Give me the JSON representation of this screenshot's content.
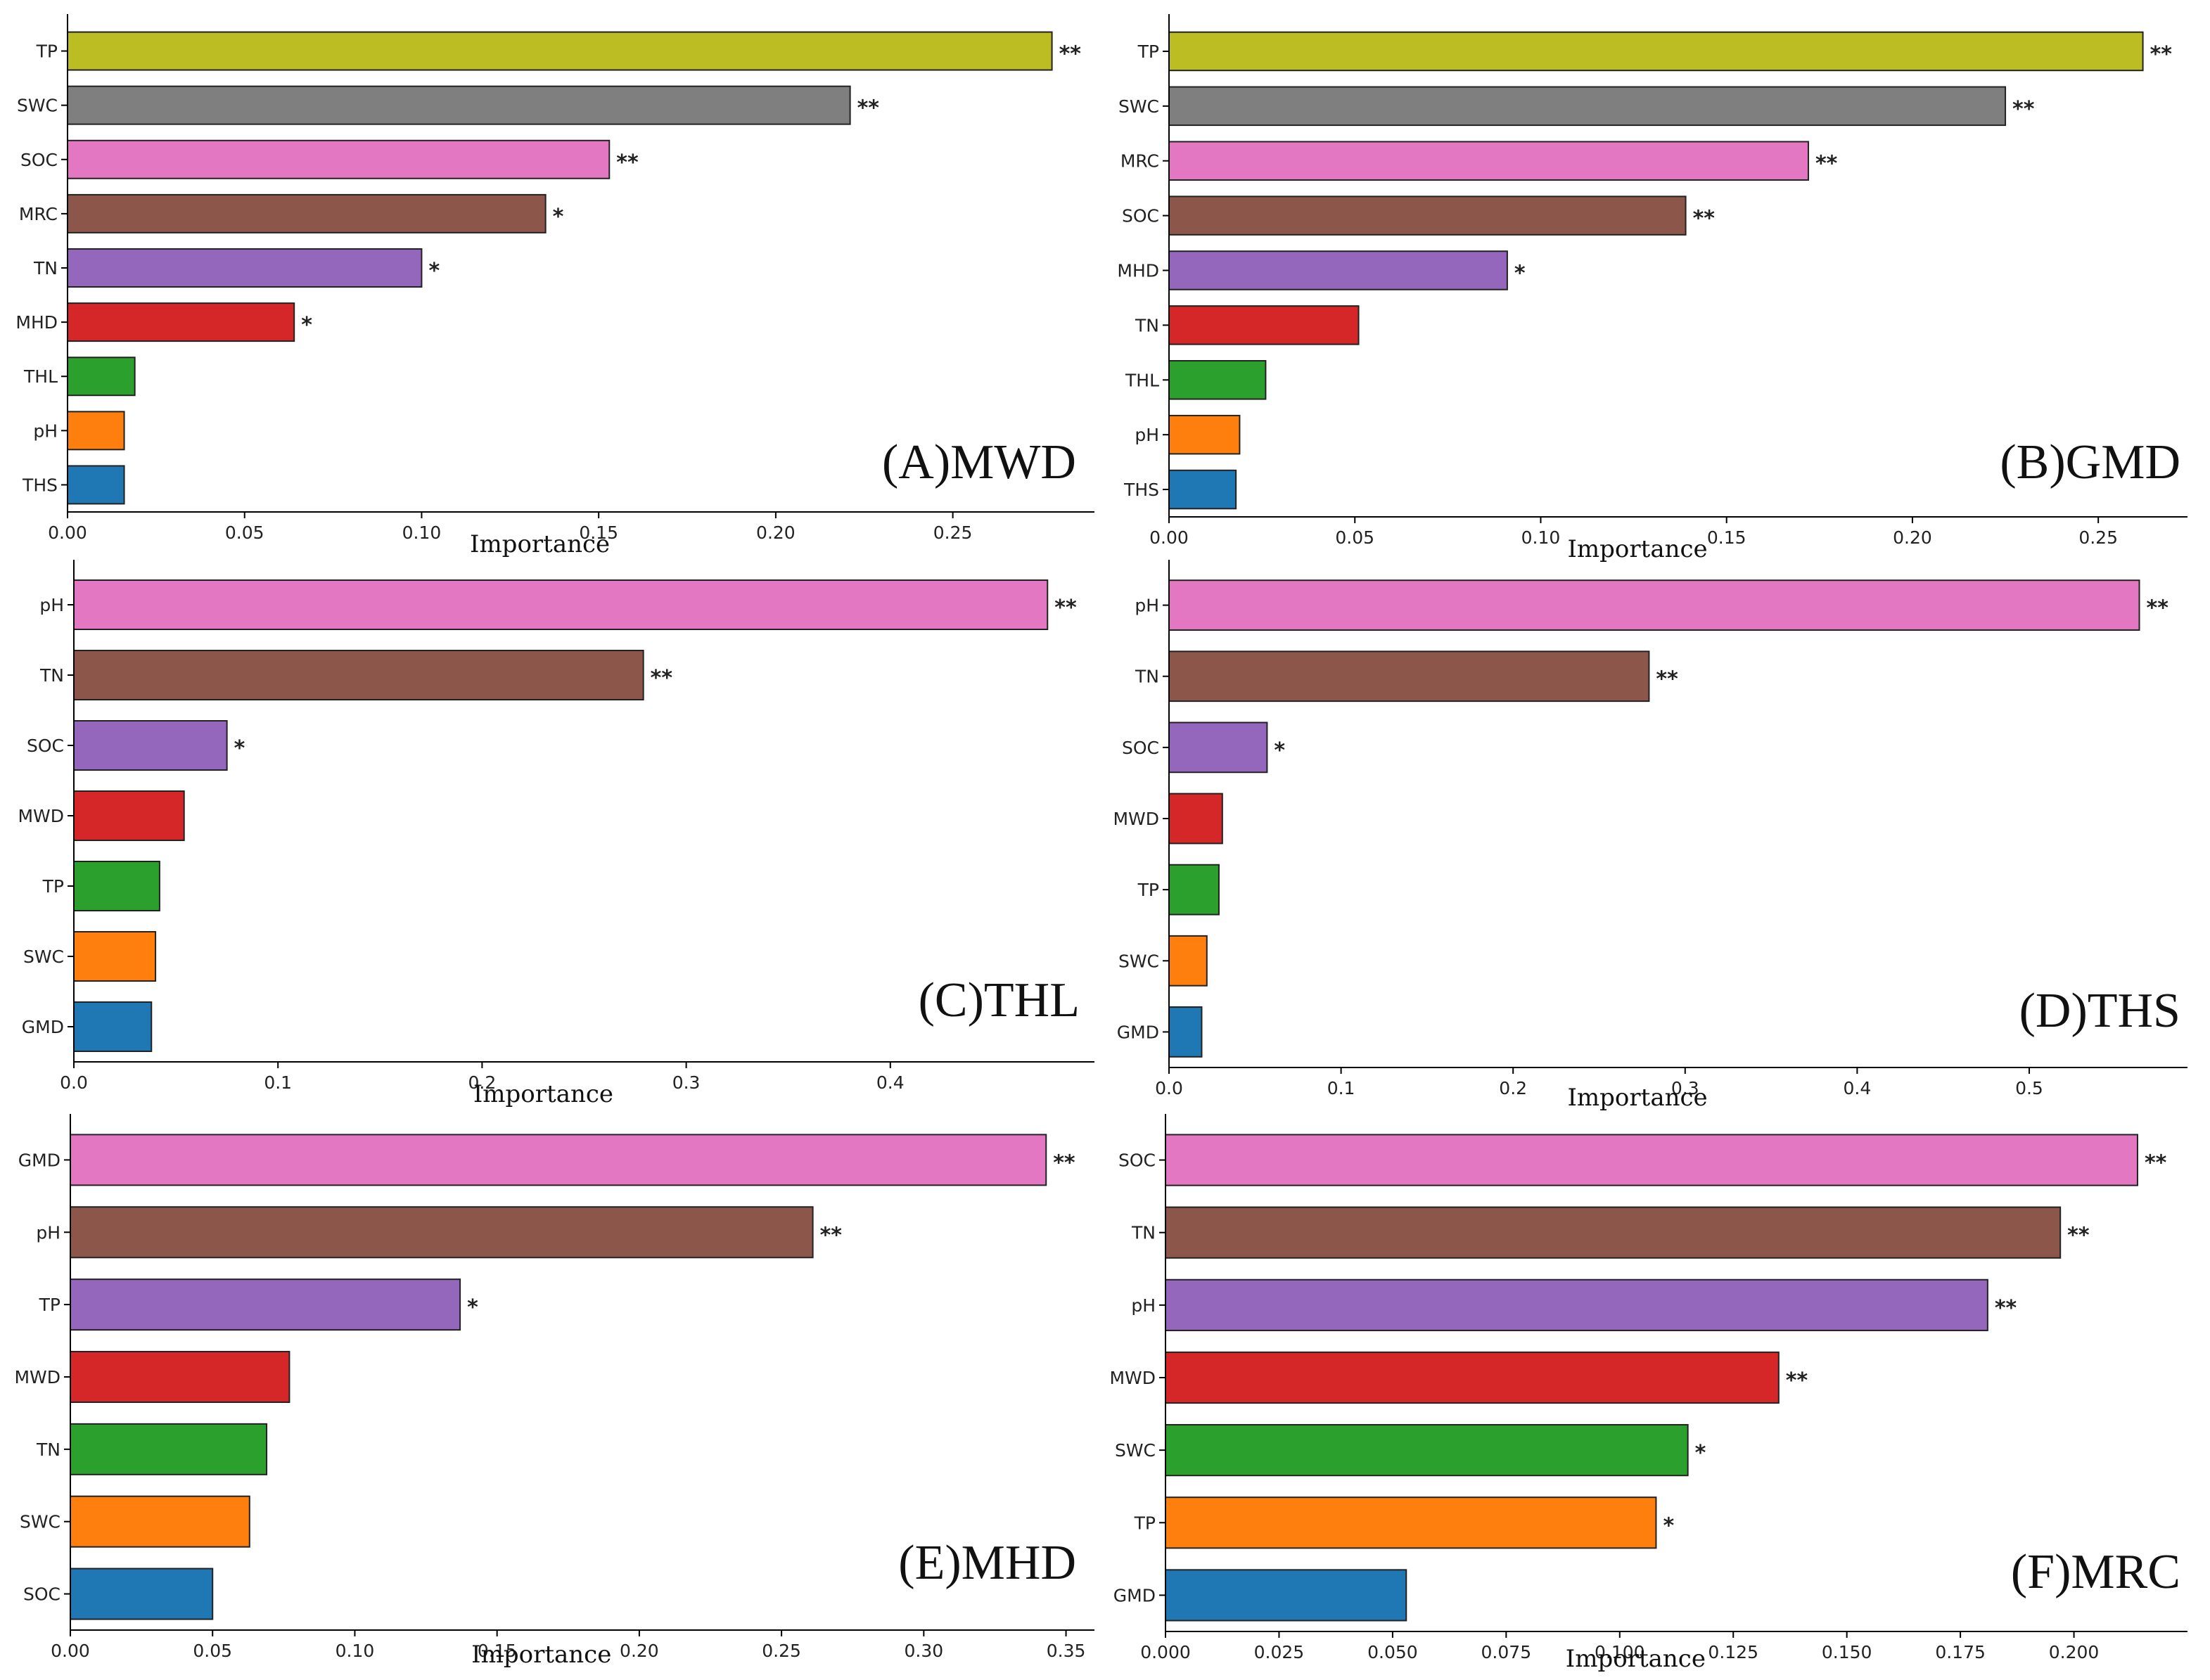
{
  "chart_data": [
    {
      "type": "bar",
      "orientation": "horizontal",
      "title": "(A)MWD",
      "xlabel": "Importance",
      "xlim": [
        0,
        0.29
      ],
      "xticks": [
        "0.00",
        "0.05",
        "0.10",
        "0.15",
        "0.20",
        "0.25"
      ],
      "categories": [
        "TP",
        "SWC",
        "SOC",
        "MRC",
        "TN",
        "MHD",
        "THL",
        "pH",
        "THS"
      ],
      "values": [
        0.278,
        0.221,
        0.153,
        0.135,
        0.1,
        0.064,
        0.019,
        0.016,
        0.016
      ],
      "colors": [
        "#bcbd22",
        "#7f7f7f",
        "#e377c2",
        "#8c564b",
        "#9467bd",
        "#d62728",
        "#2ca02c",
        "#ff7f0e",
        "#1f77b4"
      ],
      "significance": [
        "**",
        "**",
        "**",
        "*",
        "*",
        "*",
        "",
        "",
        ""
      ]
    },
    {
      "type": "bar",
      "orientation": "horizontal",
      "title": "(B)GMD",
      "xlabel": "Importance",
      "xlim": [
        0,
        0.274
      ],
      "xticks": [
        "0.00",
        "0.05",
        "0.10",
        "0.15",
        "0.20",
        "0.25"
      ],
      "categories": [
        "TP",
        "SWC",
        "MRC",
        "SOC",
        "MHD",
        "TN",
        "THL",
        "pH",
        "THS"
      ],
      "values": [
        0.262,
        0.225,
        0.172,
        0.139,
        0.091,
        0.051,
        0.026,
        0.019,
        0.018
      ],
      "colors": [
        "#bcbd22",
        "#7f7f7f",
        "#e377c2",
        "#8c564b",
        "#9467bd",
        "#d62728",
        "#2ca02c",
        "#ff7f0e",
        "#1f77b4"
      ],
      "significance": [
        "**",
        "**",
        "**",
        "**",
        "*",
        "",
        "",
        "",
        ""
      ]
    },
    {
      "type": "bar",
      "orientation": "horizontal",
      "title": "(C)THL",
      "xlabel": "Importance",
      "xlim": [
        0,
        0.5
      ],
      "xticks": [
        "0.0",
        "0.1",
        "0.2",
        "0.3",
        "0.4"
      ],
      "categories": [
        "pH",
        "TN",
        "SOC",
        "MWD",
        "TP",
        "SWC",
        "GMD"
      ],
      "values": [
        0.477,
        0.279,
        0.075,
        0.054,
        0.042,
        0.04,
        0.038
      ],
      "colors": [
        "#e377c2",
        "#8c564b",
        "#9467bd",
        "#d62728",
        "#2ca02c",
        "#ff7f0e",
        "#1f77b4"
      ],
      "significance": [
        "**",
        "**",
        "*",
        "",
        "",
        "",
        ""
      ]
    },
    {
      "type": "bar",
      "orientation": "horizontal",
      "title": "(D)THS",
      "xlabel": "Importance",
      "xlim": [
        0,
        0.592
      ],
      "xticks": [
        "0.0",
        "0.1",
        "0.2",
        "0.3",
        "0.4",
        "0.5"
      ],
      "categories": [
        "pH",
        "TN",
        "SOC",
        "MWD",
        "TP",
        "SWC",
        "GMD"
      ],
      "values": [
        0.564,
        0.279,
        0.057,
        0.031,
        0.029,
        0.022,
        0.019
      ],
      "colors": [
        "#e377c2",
        "#8c564b",
        "#9467bd",
        "#d62728",
        "#2ca02c",
        "#ff7f0e",
        "#1f77b4"
      ],
      "significance": [
        "**",
        "**",
        "*",
        "",
        "",
        "",
        ""
      ]
    },
    {
      "type": "bar",
      "orientation": "horizontal",
      "title": "(E)MHD",
      "xlabel": "Importance",
      "xlim": [
        0,
        0.36
      ],
      "xticks": [
        "0.00",
        "0.05",
        "0.10",
        "0.15",
        "0.20",
        "0.25",
        "0.30",
        "0.35"
      ],
      "categories": [
        "GMD",
        "pH",
        "TP",
        "MWD",
        "TN",
        "SWC",
        "SOC"
      ],
      "values": [
        0.343,
        0.261,
        0.137,
        0.077,
        0.069,
        0.063,
        0.05
      ],
      "colors": [
        "#e377c2",
        "#8c564b",
        "#9467bd",
        "#d62728",
        "#2ca02c",
        "#ff7f0e",
        "#1f77b4"
      ],
      "significance": [
        "**",
        "**",
        "*",
        "",
        "",
        "",
        ""
      ]
    },
    {
      "type": "bar",
      "orientation": "horizontal",
      "title": "(F)MRC",
      "xlabel": "Importance",
      "xlim": [
        0,
        0.225
      ],
      "xticks": [
        "0.000",
        "0.025",
        "0.050",
        "0.075",
        "0.100",
        "0.125",
        "0.150",
        "0.175",
        "0.200"
      ],
      "categories": [
        "SOC",
        "TN",
        "pH",
        "MWD",
        "SWC",
        "TP",
        "GMD"
      ],
      "values": [
        0.214,
        0.197,
        0.181,
        0.135,
        0.115,
        0.108,
        0.053
      ],
      "colors": [
        "#e377c2",
        "#8c564b",
        "#9467bd",
        "#d62728",
        "#2ca02c",
        "#ff7f0e",
        "#1f77b4"
      ],
      "significance": [
        "**",
        "**",
        "**",
        "**",
        "*",
        "*",
        ""
      ]
    }
  ]
}
